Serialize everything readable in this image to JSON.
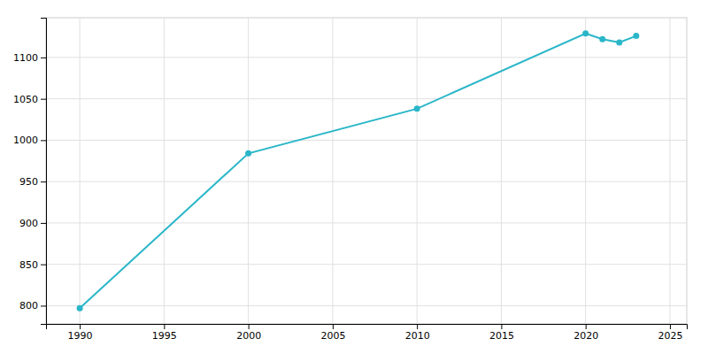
{
  "chart_data": {
    "type": "line",
    "x": [
      1990,
      2000,
      2010,
      2020,
      2021,
      2022,
      2023
    ],
    "values": [
      797,
      984,
      1038,
      1129,
      1122,
      1118,
      1126
    ],
    "color": "#29b6c8",
    "marker": "circle",
    "xlim": [
      1988,
      2026
    ],
    "ylim": [
      778,
      1148
    ],
    "xticks": [
      1990,
      1995,
      2000,
      2005,
      2010,
      2015,
      2020,
      2025
    ],
    "yticks": [
      800,
      850,
      900,
      950,
      1000,
      1050,
      1100
    ],
    "grid": true
  }
}
